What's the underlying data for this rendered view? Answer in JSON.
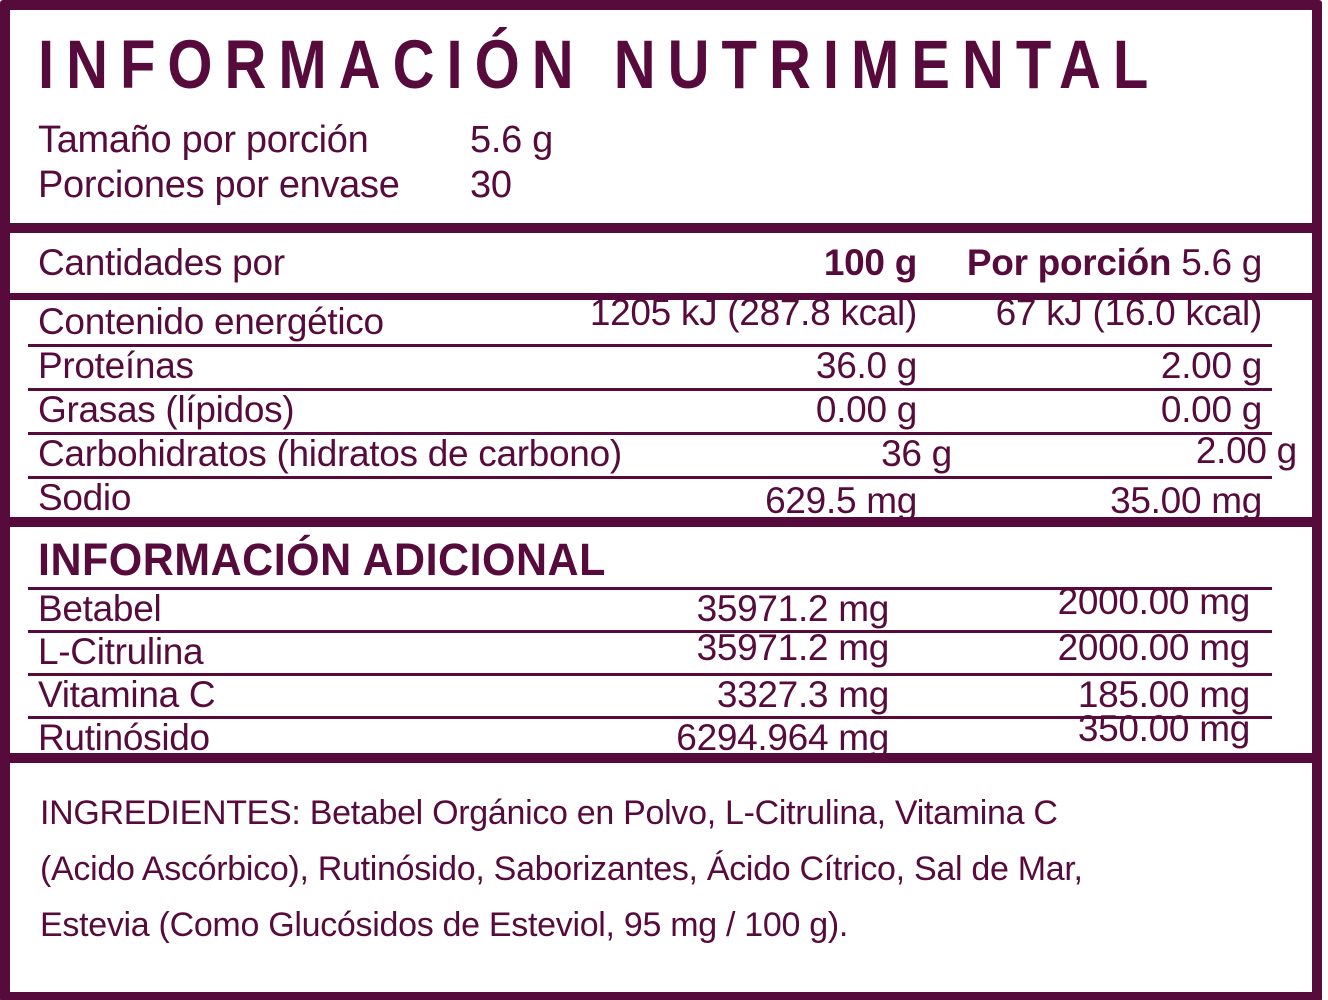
{
  "colors": {
    "primary": "#570B3C",
    "background": "#FFFFFF"
  },
  "header": {
    "title": "INFORMACIÓN NUTRIMENTAL",
    "serving_rows": [
      {
        "label": "Tamaño por porción",
        "value": "5.6 g"
      },
      {
        "label": "Porciones por envase",
        "value": "30"
      }
    ]
  },
  "amounts_table": {
    "header": {
      "label": "Cantidades por",
      "col_100g": "100 g",
      "col_portion_bold": "Por porción",
      "col_portion_size": "5.6 g"
    },
    "rows": [
      {
        "label": "Contenido energético",
        "per_100g": "1205 kJ (287.8 kcal)",
        "per_portion": "67 kJ (16.0 kcal)"
      },
      {
        "label": "Proteínas",
        "per_100g": "36.0 g",
        "per_portion": "2.00 g"
      },
      {
        "label": "Grasas (lípidos)",
        "per_100g": "0.00 g",
        "per_portion": "0.00 g"
      },
      {
        "label": "Carbohidratos (hidratos de carbono)",
        "per_100g": "36 g",
        "per_portion": "2.00 g"
      },
      {
        "label": "Sodio",
        "per_100g": "629.5 mg",
        "per_portion": "35.00 mg"
      }
    ]
  },
  "additional_table": {
    "title": "INFORMACIÓN ADICIONAL",
    "rows": [
      {
        "label": "Betabel",
        "per_100g": "35971.2 mg",
        "per_portion": "2000.00 mg"
      },
      {
        "label": "L-Citrulina",
        "per_100g": "35971.2 mg",
        "per_portion": "2000.00 mg"
      },
      {
        "label": "Vitamina C",
        "per_100g": "3327.3 mg",
        "per_portion": "185.00 mg"
      },
      {
        "label": "Rutinósido",
        "per_100g": "6294.964 mg",
        "per_portion": "350.00 mg"
      }
    ]
  },
  "ingredients": {
    "lines": [
      "INGREDIENTES: Betabel Orgánico en Polvo, L-Citrulina, Vitamina C",
      "(Acido Ascórbico), Rutinósido, Saborizantes, Ácido Cítrico, Sal de Mar,",
      "Estevia (Como Glucósidos de Esteviol, 95 mg / 100 g)."
    ]
  }
}
